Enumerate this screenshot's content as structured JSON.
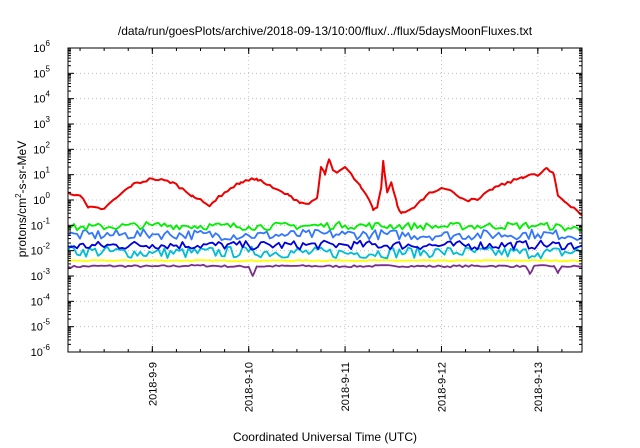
{
  "chart_data": {
    "type": "line",
    "title": "/data/run/goesPlots/archive/2018-09-13/10:00/flux/../flux/5daysMoonFluxes.txt",
    "xlabel": "Coordinated Universal Time (UTC)",
    "ylabel": {
      "prefix": "protons/cm",
      "sup": "2",
      "suffix": "-s-sr-MeV"
    },
    "y_scale": "log",
    "ylim": [
      1e-06,
      1000000.0
    ],
    "xlim": [
      "2018-09-08T03:00",
      "2018-09-13T11:00"
    ],
    "grid": true,
    "legend": "none",
    "x_ticks": [
      {
        "x": "2018-09-09T00:00",
        "label": "2018-9-9"
      },
      {
        "x": "2018-09-10T00:00",
        "label": "2018-9-10"
      },
      {
        "x": "2018-09-11T00:00",
        "label": "2018-9-11"
      },
      {
        "x": "2018-09-12T00:00",
        "label": "2018-9-12"
      },
      {
        "x": "2018-09-13T00:00",
        "label": "2018-9-13"
      }
    ],
    "y_ticks": [
      {
        "exp": "-6",
        "value": 1e-06
      },
      {
        "exp": "-5",
        "value": 1e-05
      },
      {
        "exp": "-4",
        "value": 0.0001
      },
      {
        "exp": "-3",
        "value": 0.001
      },
      {
        "exp": "-2",
        "value": 0.01
      },
      {
        "exp": "-1",
        "value": 0.1
      },
      {
        "exp": "0",
        "value": 1
      },
      {
        "exp": "1",
        "value": 10
      },
      {
        "exp": "2",
        "value": 100
      },
      {
        "exp": "3",
        "value": 1000
      },
      {
        "exp": "4",
        "value": 10000
      },
      {
        "exp": "5",
        "value": 100000
      },
      {
        "exp": "6",
        "value": 1000000
      }
    ],
    "series": [
      {
        "color": "#7b2d8b",
        "noise": 0.08,
        "points": [
          [
            "2018-09-08T03:00",
            0.0023
          ],
          [
            "2018-09-08T12:00",
            0.0025
          ],
          [
            "2018-09-09T00:00",
            0.0024
          ],
          [
            "2018-09-09T12:00",
            0.0026
          ],
          [
            "2018-09-10T00:00",
            0.0023
          ],
          [
            "2018-09-10T01:00",
            0.001
          ],
          [
            "2018-09-10T02:00",
            0.0024
          ],
          [
            "2018-09-10T12:00",
            0.0025
          ],
          [
            "2018-09-11T00:00",
            0.0024
          ],
          [
            "2018-09-11T12:00",
            0.0025
          ],
          [
            "2018-09-12T00:00",
            0.0024
          ],
          [
            "2018-09-12T12:00",
            0.0025
          ],
          [
            "2018-09-12T21:00",
            0.0024
          ],
          [
            "2018-09-12T22:00",
            0.0012
          ],
          [
            "2018-09-12T23:00",
            0.0024
          ],
          [
            "2018-09-13T04:00",
            0.0025
          ],
          [
            "2018-09-13T05:00",
            0.0013
          ],
          [
            "2018-09-13T06:00",
            0.0024
          ],
          [
            "2018-09-13T11:00",
            0.0024
          ]
        ]
      },
      {
        "color": "#ffff00",
        "noise": 0.05,
        "points": [
          [
            "2018-09-08T03:00",
            0.004
          ],
          [
            "2018-09-09T00:00",
            0.0041
          ],
          [
            "2018-09-10T00:00",
            0.004
          ],
          [
            "2018-09-11T00:00",
            0.0041
          ],
          [
            "2018-09-12T00:00",
            0.004
          ],
          [
            "2018-09-13T00:00",
            0.0041
          ],
          [
            "2018-09-13T11:00",
            0.004
          ]
        ]
      },
      {
        "color": "#00bcd4",
        "noise": 0.45,
        "points": [
          [
            "2018-09-08T03:00",
            0.01
          ],
          [
            "2018-09-09T00:00",
            0.008
          ],
          [
            "2018-09-10T00:00",
            0.009
          ],
          [
            "2018-09-11T00:00",
            0.008
          ],
          [
            "2018-09-12T00:00",
            0.009
          ],
          [
            "2018-09-13T00:00",
            0.008
          ],
          [
            "2018-09-13T11:00",
            0.009
          ]
        ]
      },
      {
        "color": "#0000dd",
        "noise": 0.35,
        "points": [
          [
            "2018-09-08T03:00",
            0.015
          ],
          [
            "2018-09-09T00:00",
            0.017
          ],
          [
            "2018-09-10T00:00",
            0.016
          ],
          [
            "2018-09-11T00:00",
            0.017
          ],
          [
            "2018-09-12T00:00",
            0.016
          ],
          [
            "2018-09-13T00:00",
            0.017
          ],
          [
            "2018-09-13T11:00",
            0.016
          ]
        ]
      },
      {
        "color": "#3377ff",
        "noise": 0.4,
        "points": [
          [
            "2018-09-08T03:00",
            0.04
          ],
          [
            "2018-09-09T00:00",
            0.045
          ],
          [
            "2018-09-10T00:00",
            0.04
          ],
          [
            "2018-09-11T00:00",
            0.045
          ],
          [
            "2018-09-12T00:00",
            0.04
          ],
          [
            "2018-09-13T00:00",
            0.045
          ],
          [
            "2018-09-13T11:00",
            0.04
          ]
        ]
      },
      {
        "color": "#00ee00",
        "noise": 0.3,
        "points": [
          [
            "2018-09-08T03:00",
            0.08
          ],
          [
            "2018-09-09T00:00",
            0.1
          ],
          [
            "2018-09-10T00:00",
            0.09
          ],
          [
            "2018-09-11T00:00",
            0.1
          ],
          [
            "2018-09-12T00:00",
            0.09
          ],
          [
            "2018-09-13T00:00",
            0.1
          ],
          [
            "2018-09-13T11:00",
            0.07
          ]
        ]
      },
      {
        "color": "#ee0000",
        "noise": 0.12,
        "points": [
          [
            "2018-09-08T03:00",
            2.0
          ],
          [
            "2018-09-08T06:00",
            1.5
          ],
          [
            "2018-09-08T08:00",
            0.5
          ],
          [
            "2018-09-08T12:00",
            0.45
          ],
          [
            "2018-09-08T15:00",
            1.2
          ],
          [
            "2018-09-08T19:00",
            4.0
          ],
          [
            "2018-09-09T00:00",
            7.0
          ],
          [
            "2018-09-09T05:00",
            5.0
          ],
          [
            "2018-09-09T10:00",
            1.5
          ],
          [
            "2018-09-09T14:00",
            0.6
          ],
          [
            "2018-09-09T18:00",
            2.0
          ],
          [
            "2018-09-09T22:00",
            5.0
          ],
          [
            "2018-09-10T02:00",
            7.0
          ],
          [
            "2018-09-10T06:00",
            3.0
          ],
          [
            "2018-09-10T10:00",
            1.5
          ],
          [
            "2018-09-10T13:00",
            0.8
          ],
          [
            "2018-09-10T15:00",
            0.7
          ],
          [
            "2018-09-10T17:00",
            1.2
          ],
          [
            "2018-09-10T18:00",
            20
          ],
          [
            "2018-09-10T19:00",
            10
          ],
          [
            "2018-09-10T20:00",
            40
          ],
          [
            "2018-09-10T21:00",
            15
          ],
          [
            "2018-09-10T22:00",
            12
          ],
          [
            "2018-09-11T00:00",
            20
          ],
          [
            "2018-09-11T02:00",
            8
          ],
          [
            "2018-09-11T04:00",
            3
          ],
          [
            "2018-09-11T06:00",
            1.0
          ],
          [
            "2018-09-11T07:00",
            0.4
          ],
          [
            "2018-09-11T08:00",
            0.5
          ],
          [
            "2018-09-11T09:00",
            3.0
          ],
          [
            "2018-09-11T09:30",
            35
          ],
          [
            "2018-09-11T10:30",
            2.0
          ],
          [
            "2018-09-11T11:30",
            5.0
          ],
          [
            "2018-09-11T13:00",
            0.6
          ],
          [
            "2018-09-11T14:00",
            0.3
          ],
          [
            "2018-09-11T16:00",
            0.4
          ],
          [
            "2018-09-11T18:00",
            0.7
          ],
          [
            "2018-09-11T21:00",
            2.0
          ],
          [
            "2018-09-12T00:00",
            3.0
          ],
          [
            "2018-09-12T03:00",
            2.0
          ],
          [
            "2018-09-12T06:00",
            1.0
          ],
          [
            "2018-09-12T09:00",
            1.0
          ],
          [
            "2018-09-12T13:00",
            3.0
          ],
          [
            "2018-09-12T17:00",
            5.0
          ],
          [
            "2018-09-12T20:00",
            8.0
          ],
          [
            "2018-09-12T22:00",
            10
          ],
          [
            "2018-09-13T00:00",
            9.0
          ],
          [
            "2018-09-13T02:00",
            18
          ],
          [
            "2018-09-13T04:00",
            10
          ],
          [
            "2018-09-13T05:00",
            1.5
          ],
          [
            "2018-09-13T07:00",
            0.8
          ],
          [
            "2018-09-13T09:00",
            0.5
          ],
          [
            "2018-09-13T11:00",
            0.25
          ]
        ]
      }
    ]
  }
}
